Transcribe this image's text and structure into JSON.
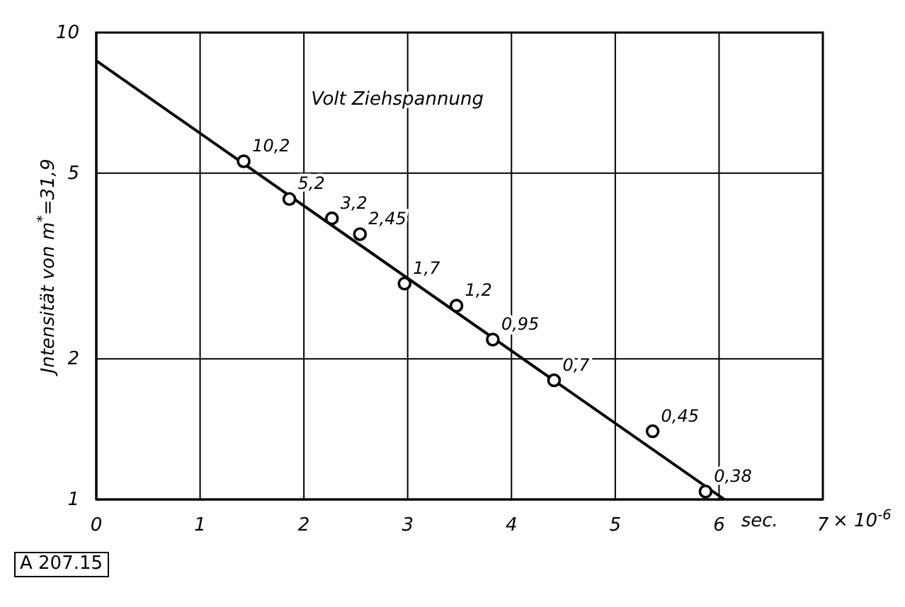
{
  "chart_data": {
    "type": "scatter",
    "xlabel": "sec.",
    "ylabel": "Jntensität von m$^{*}$=31,9",
    "log": "y",
    "grid": true,
    "marker": "circle",
    "xlim": [
      0,
      7
    ],
    "xticks": [
      0,
      1,
      2,
      3,
      4,
      5,
      6,
      7
    ],
    "ylim": [
      1,
      10
    ],
    "yticks": [
      1,
      2,
      5,
      10
    ],
    "series": [
      {
        "color": "#000000",
        "x": [
          1.42,
          1.86,
          2.27,
          2.54,
          2.97,
          3.47,
          3.82,
          4.41,
          5.36,
          5.87
        ],
        "values": [
          5.3,
          4.4,
          4.0,
          3.7,
          2.9,
          2.6,
          2.2,
          1.8,
          1.4,
          1.04
        ]
      },
      {
        "type": "line",
        "color": "#000000",
        "marker": "none",
        "x": [
          0,
          6.05
        ],
        "values": [
          8.7,
          1
        ]
      }
    ],
    "annotations": [
      "Volt Ziehspannung",
      {
        "text": "10,2",
        "x": 1.42,
        "y": 5.3
      },
      {
        "text": "5,2",
        "x": 1.86,
        "y": 4.4
      },
      {
        "text": "3,2",
        "x": 2.27,
        "y": 4.0
      },
      {
        "text": "2,45",
        "x": 2.54,
        "y": 3.7
      },
      {
        "text": "1,7",
        "x": 2.97,
        "y": 2.9
      },
      {
        "text": "1,2",
        "x": 3.47,
        "y": 2.6
      },
      {
        "text": "0,95",
        "x": 3.82,
        "y": 2.2
      },
      {
        "text": "0,7",
        "x": 4.41,
        "y": 1.8
      },
      {
        "text": "0,45",
        "x": 5.36,
        "y": 1.4
      },
      {
        "text": "0,38",
        "x": 5.87,
        "y": 1.04
      },
      "A 207.15",
      "× 10$^{-6}$"
    ]
  }
}
